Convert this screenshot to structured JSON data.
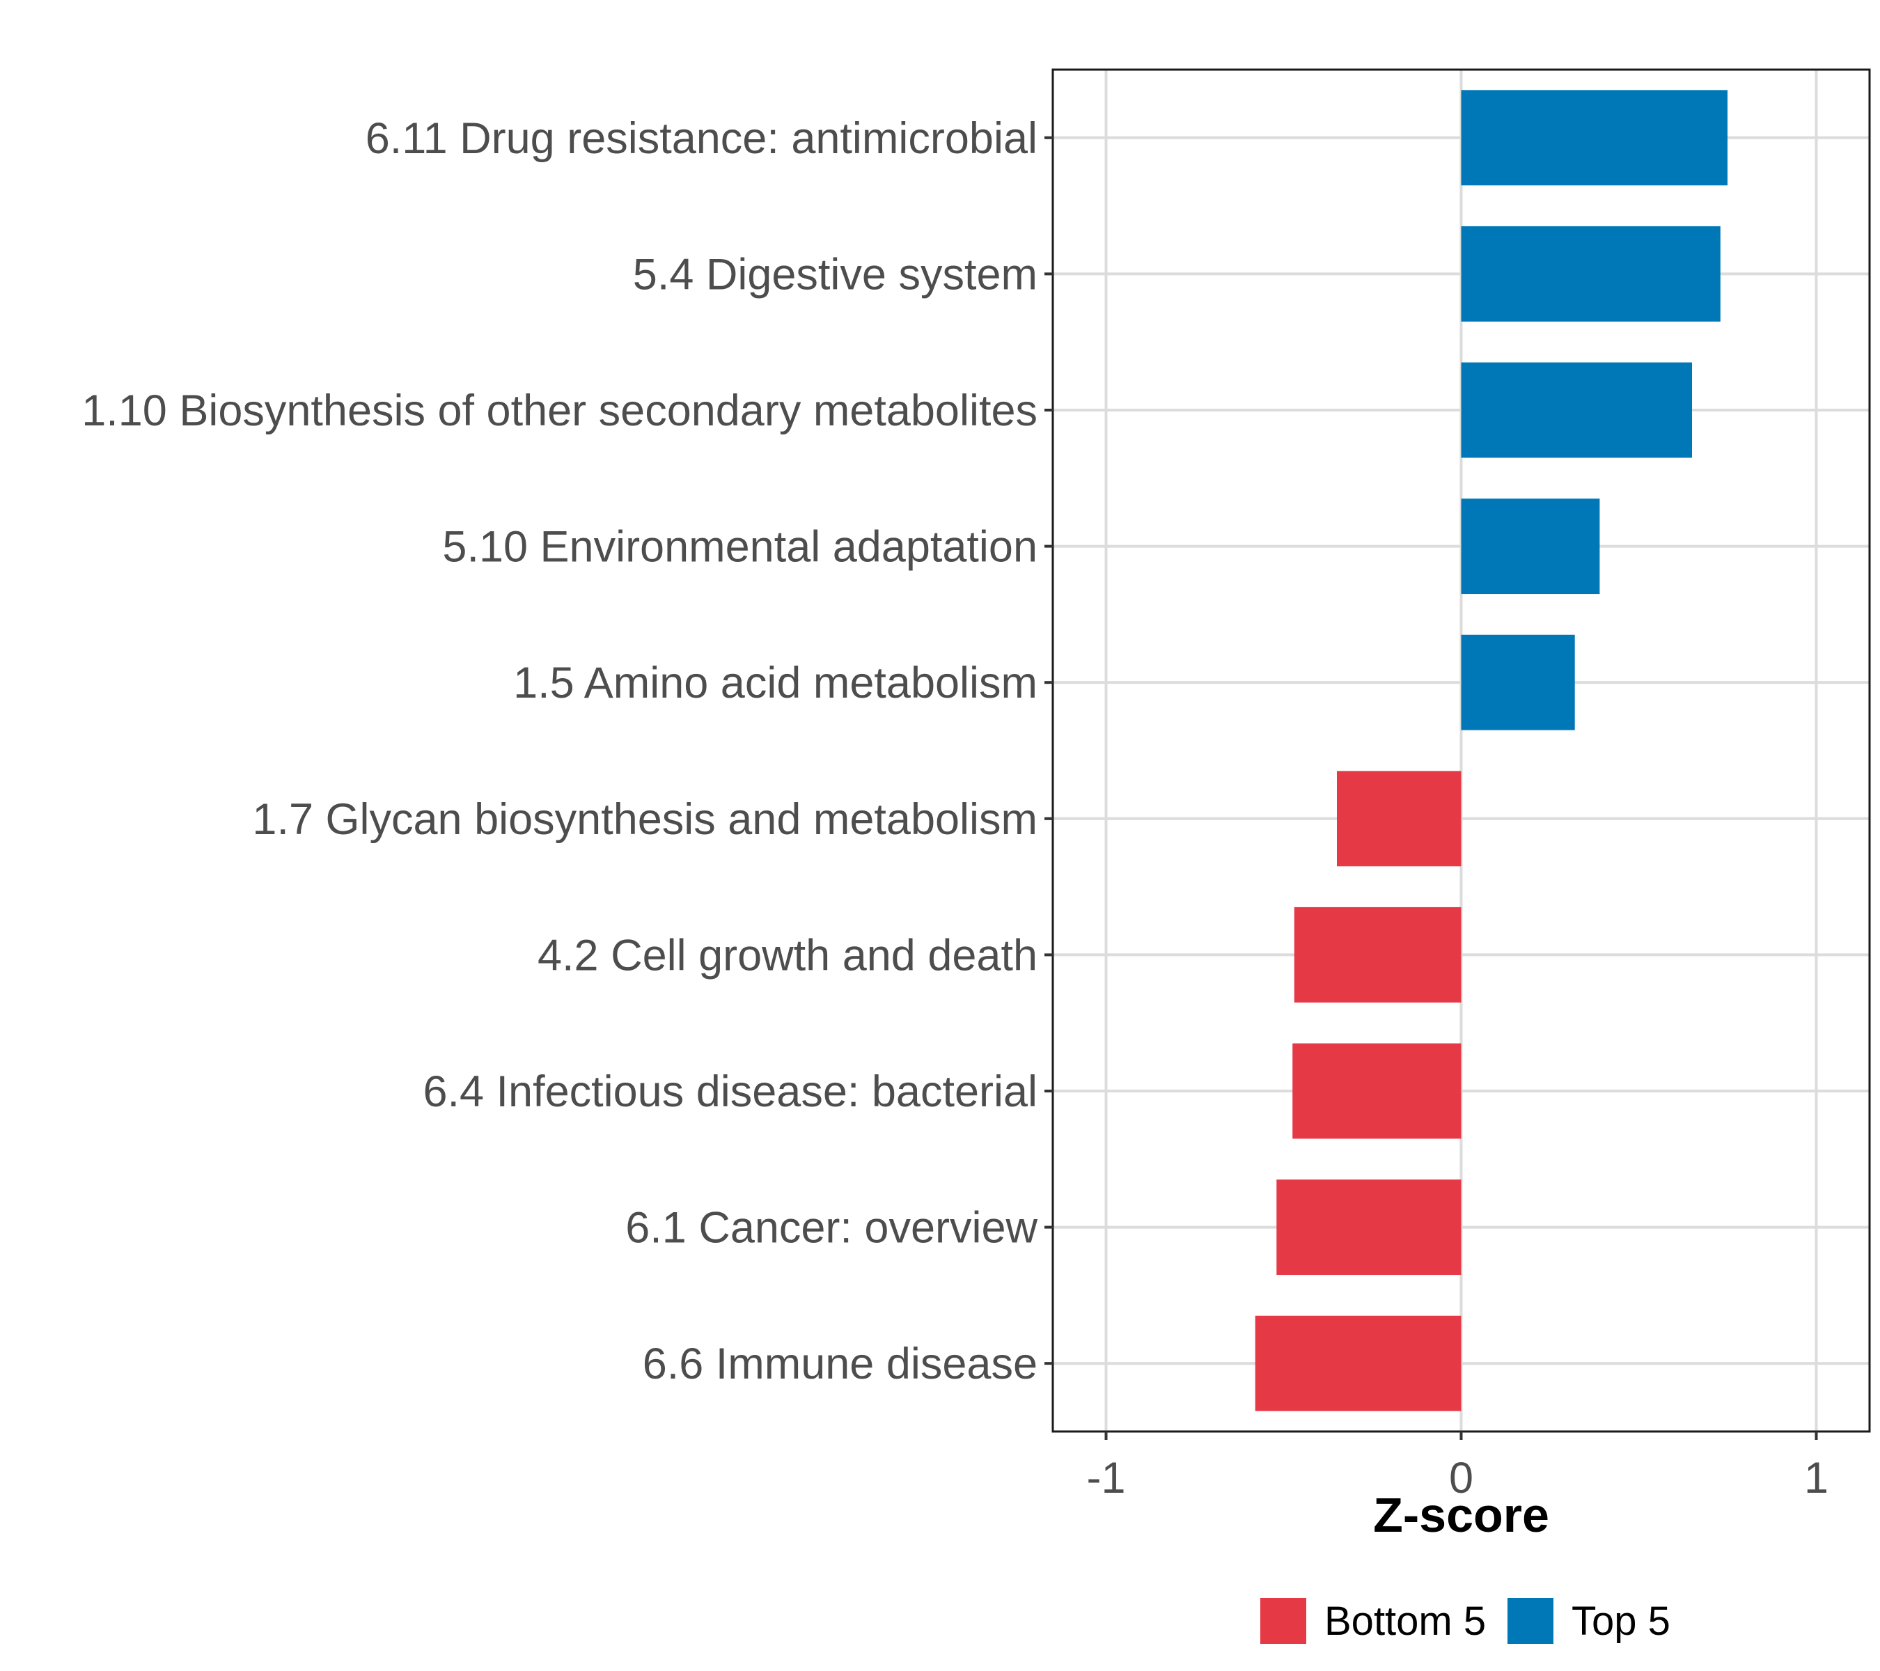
{
  "chart_data": {
    "type": "bar",
    "orientation": "horizontal",
    "categories": [
      "6.11 Drug resistance: antimicrobial",
      "5.4 Digestive system",
      "1.10 Biosynthesis of other secondary metabolites",
      "5.10 Environmental adaptation",
      "1.5 Amino acid metabolism",
      "1.7 Glycan biosynthesis and metabolism",
      "4.2 Cell growth and death",
      "6.4 Infectious disease: bacterial",
      "6.1 Cancer: overview",
      "6.6 Immune disease"
    ],
    "values": [
      0.75,
      0.73,
      0.65,
      0.39,
      0.32,
      -0.35,
      -0.47,
      -0.475,
      -0.52,
      -0.58
    ],
    "groups": [
      "Top 5",
      "Top 5",
      "Top 5",
      "Top 5",
      "Top 5",
      "Bottom 5",
      "Bottom 5",
      "Bottom 5",
      "Bottom 5",
      "Bottom 5"
    ],
    "xlim": [
      -1.15,
      1.15
    ],
    "xticks": [
      -1,
      0,
      1
    ],
    "xtick_labels": [
      "-1",
      "0",
      "1"
    ],
    "title": "",
    "xlabel": "Z-score",
    "ylabel": "",
    "grid": true,
    "legend": {
      "position": "bottom",
      "entries": [
        {
          "label": "Bottom 5",
          "color": "#e63946"
        },
        {
          "label": "Top 5",
          "color": "#0077b6"
        }
      ]
    }
  }
}
